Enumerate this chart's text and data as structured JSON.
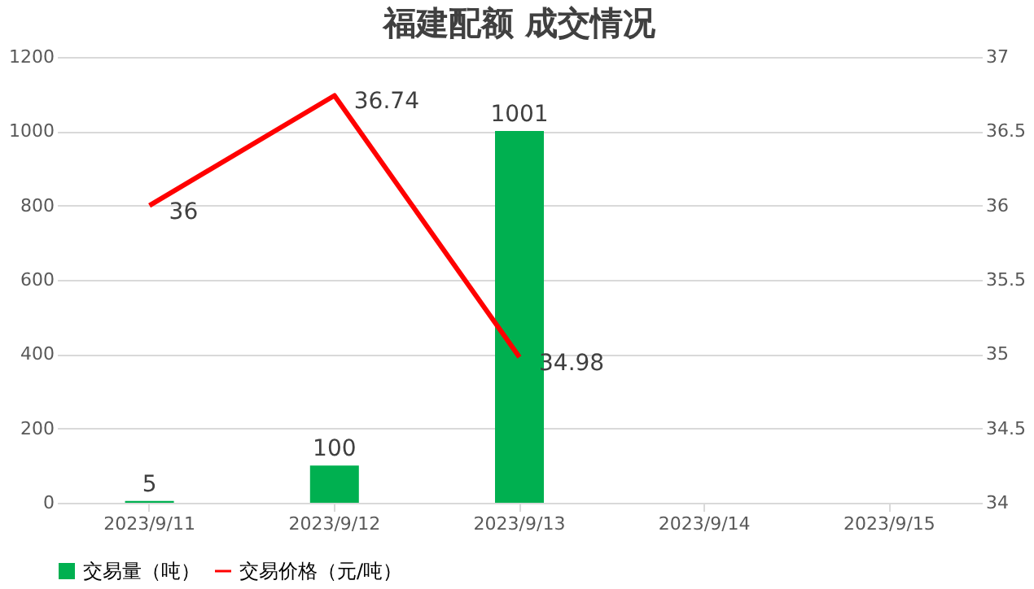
{
  "chart_data": {
    "type": "bar",
    "title": "福建配额 成交情况",
    "categories": [
      "2023/9/11",
      "2023/9/12",
      "2023/9/13",
      "2023/9/14",
      "2023/9/15"
    ],
    "series": [
      {
        "name": "交易量（吨）",
        "color": "#00b050",
        "values": [
          5,
          100,
          1001,
          null,
          null
        ]
      },
      {
        "name": "交易价格（元/吨）",
        "type": "line",
        "axis": "y2",
        "color": "#ff0000",
        "values": [
          36,
          36.74,
          34.98,
          null,
          null
        ]
      }
    ],
    "ylim": [
      0,
      1200
    ],
    "yticks": [
      0,
      200,
      400,
      600,
      800,
      1000,
      1200
    ],
    "y2lim": [
      34,
      37
    ],
    "y2ticks": [
      34,
      34.5,
      35,
      35.5,
      36,
      36.5,
      37
    ],
    "grid": "y",
    "legend": "bottom",
    "data_labels": true
  }
}
